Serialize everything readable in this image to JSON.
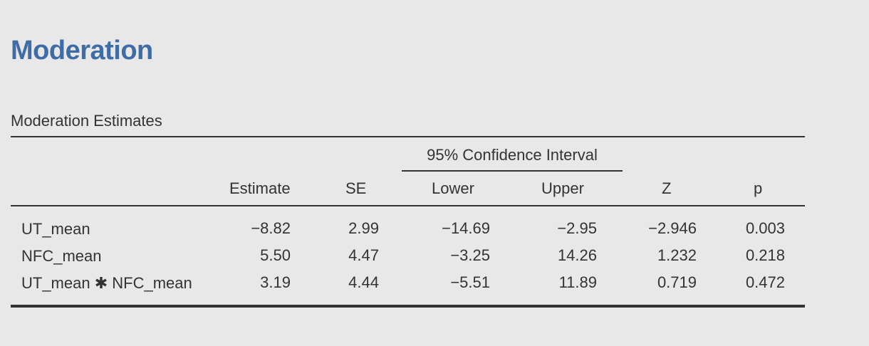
{
  "title": "Moderation",
  "table": {
    "caption": "Moderation Estimates",
    "ci_header": "95% Confidence Interval",
    "columns": {
      "estimate": "Estimate",
      "se": "SE",
      "lower": "Lower",
      "upper": "Upper",
      "z": "Z",
      "p": "p"
    },
    "rows": [
      {
        "label": "UT_mean",
        "estimate": "−8.82",
        "se": "2.99",
        "lower": "−14.69",
        "upper": "−2.95",
        "z": "−2.946",
        "p": "0.003"
      },
      {
        "label": "NFC_mean",
        "estimate": "5.50",
        "se": "4.47",
        "lower": "−3.25",
        "upper": "14.26",
        "z": "1.232",
        "p": "0.218"
      },
      {
        "label": "UT_mean ✱ NFC_mean",
        "estimate": "3.19",
        "se": "4.44",
        "lower": "−5.51",
        "upper": "11.89",
        "z": "0.719",
        "p": "0.472"
      }
    ]
  }
}
